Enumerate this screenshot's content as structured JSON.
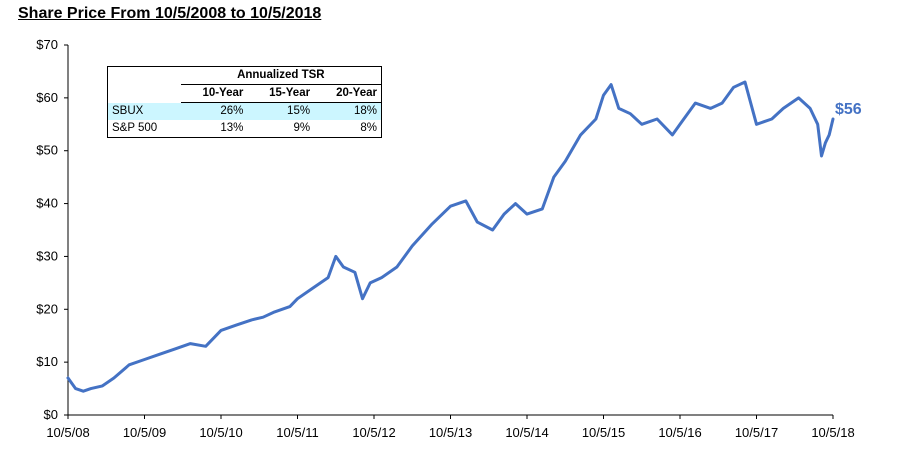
{
  "title": "Share Price From 10/5/2008 to 10/5/2018",
  "end_label": "$56",
  "tsr_table": {
    "title": "Annualized TSR",
    "columns": [
      "10-Year",
      "15-Year",
      "20-Year"
    ],
    "rows": [
      {
        "label": "SBUX",
        "values": [
          "26%",
          "15%",
          "18%"
        ]
      },
      {
        "label": "S&P 500",
        "values": [
          "13%",
          "9%",
          "8%"
        ]
      }
    ]
  },
  "colors": {
    "line": "#4472c4",
    "highlight_row": "#ccf6ff",
    "end_label": "#4472c4"
  },
  "chart_data": {
    "type": "line",
    "title": "Share Price From 10/5/2008 to 10/5/2018",
    "xlabel": "",
    "ylabel": "",
    "x_ticks": [
      "10/5/08",
      "10/5/09",
      "10/5/10",
      "10/5/11",
      "10/5/12",
      "10/5/13",
      "10/5/14",
      "10/5/15",
      "10/5/16",
      "10/5/17",
      "10/5/18"
    ],
    "y_ticks": [
      "$0",
      "$10",
      "$20",
      "$30",
      "$40",
      "$50",
      "$60",
      "$70"
    ],
    "xlim": [
      2008.0,
      2018.0
    ],
    "ylim": [
      0,
      70
    ],
    "grid": false,
    "legend": "none",
    "series": [
      {
        "x": [
          2008.0,
          2008.1,
          2008.2,
          2008.3,
          2008.45,
          2008.6,
          2008.8,
          2009.0,
          2009.2,
          2009.4,
          2009.6,
          2009.8,
          2010.0,
          2010.2,
          2010.4,
          2010.55,
          2010.7,
          2010.9,
          2011.0,
          2011.2,
          2011.4,
          2011.5,
          2011.6,
          2011.75,
          2011.85,
          2011.95,
          2012.1,
          2012.3,
          2012.5,
          2012.75,
          2013.0,
          2013.2,
          2013.35,
          2013.55,
          2013.7,
          2013.85,
          2014.0,
          2014.2,
          2014.35,
          2014.5,
          2014.7,
          2014.9,
          2015.0,
          2015.1,
          2015.2,
          2015.35,
          2015.5,
          2015.7,
          2015.9,
          2016.0,
          2016.2,
          2016.4,
          2016.55,
          2016.7,
          2016.85,
          2017.0,
          2017.2,
          2017.35,
          2017.55,
          2017.7,
          2017.8,
          2017.85,
          2017.9,
          2017.95,
          2018.0
        ],
        "y": [
          7,
          5,
          4.5,
          5,
          5.5,
          7,
          9.5,
          10.5,
          11.5,
          12.5,
          13.5,
          13,
          16,
          17,
          18,
          18.5,
          19.5,
          20.5,
          22,
          24,
          26,
          30,
          28,
          27,
          22,
          25,
          26,
          28,
          32,
          36,
          39.5,
          40.5,
          36.5,
          35,
          38,
          40,
          38,
          39,
          45,
          48,
          53,
          56,
          60.5,
          62.5,
          58,
          57,
          55,
          56,
          53,
          55,
          59,
          58,
          59,
          62,
          63,
          55,
          56,
          58,
          60,
          58,
          55,
          49,
          51.5,
          53,
          56
        ]
      }
    ]
  }
}
